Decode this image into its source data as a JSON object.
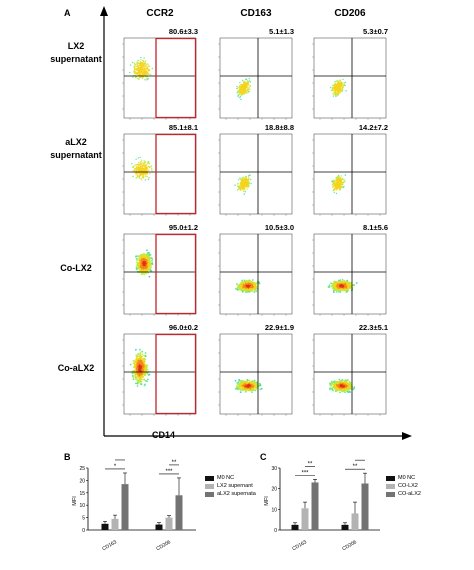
{
  "panelA": {
    "letter": "A",
    "columns": [
      "CCR2",
      "CD163",
      "CD206"
    ],
    "rows": [
      {
        "label_lines": [
          "LX2",
          "supernatant"
        ],
        "values": [
          "80.6±3.3",
          "5.1±1.3",
          "5.3±0.7"
        ],
        "density": "scatter"
      },
      {
        "label_lines": [
          "aLX2",
          "supernatant"
        ],
        "values": [
          "85.1±8.1",
          "18.8±8.8",
          "14.2±7.2"
        ],
        "density": "scatter"
      },
      {
        "label_lines": [
          "Co-LX2"
        ],
        "values": [
          "95.0±1.2",
          "10.5±3.0",
          "8.1±5.6"
        ],
        "density": "dense"
      },
      {
        "label_lines": [
          "Co-aLX2"
        ],
        "values": [
          "96.0±0.2",
          "22.9±1.9",
          "22.3±5.1"
        ],
        "density": "dense"
      }
    ],
    "x_axis_label": "CD14",
    "gate_color": "#c0272d"
  },
  "chart_data": [
    {
      "panel": "B",
      "type": "bar",
      "categories": [
        "CD163",
        "CD206"
      ],
      "ylabel": "MFI",
      "ylim": [
        0,
        25
      ],
      "yticks": [
        0,
        5,
        10,
        15,
        20,
        25
      ],
      "series": [
        {
          "name": "M0 NC",
          "color": "#111111",
          "values": [
            2.5,
            2.2
          ],
          "errors": [
            1.0,
            0.8
          ]
        },
        {
          "name": "LX2 supernant",
          "color": "#b3b3b3",
          "values": [
            4.5,
            5.0
          ],
          "errors": [
            1.5,
            0.8
          ]
        },
        {
          "name": "aLX2 supernata",
          "color": "#737373",
          "values": [
            18.5,
            14.0
          ],
          "errors": [
            4.5,
            7.0
          ]
        }
      ],
      "significance": [
        {
          "cat": 0,
          "from": 0,
          "to": 2,
          "label": "*"
        },
        {
          "cat": 0,
          "from": 1,
          "to": 2,
          "label": "*"
        },
        {
          "cat": 1,
          "from": 0,
          "to": 2,
          "label": "***"
        },
        {
          "cat": 1,
          "from": 1,
          "to": 2,
          "label": "**"
        }
      ]
    },
    {
      "panel": "C",
      "type": "bar",
      "categories": [
        "CD163",
        "CD206"
      ],
      "ylabel": "MFI",
      "ylim": [
        0,
        30
      ],
      "yticks": [
        0,
        10,
        20,
        30
      ],
      "series": [
        {
          "name": "M0 NC",
          "color": "#111111",
          "values": [
            2.5,
            2.5
          ],
          "errors": [
            1.0,
            1.0
          ]
        },
        {
          "name": "CO-LX2",
          "color": "#b3b3b3",
          "values": [
            10.5,
            8.0
          ],
          "errors": [
            3.0,
            5.5
          ]
        },
        {
          "name": "CO-aLX2",
          "color": "#737373",
          "values": [
            23.0,
            22.5
          ],
          "errors": [
            1.5,
            5.0
          ]
        }
      ],
      "significance": [
        {
          "cat": 0,
          "from": 0,
          "to": 2,
          "label": "***"
        },
        {
          "cat": 0,
          "from": 1,
          "to": 2,
          "label": "**"
        },
        {
          "cat": 1,
          "from": 0,
          "to": 2,
          "label": "**"
        },
        {
          "cat": 1,
          "from": 1,
          "to": 2,
          "label": "*"
        }
      ]
    }
  ]
}
